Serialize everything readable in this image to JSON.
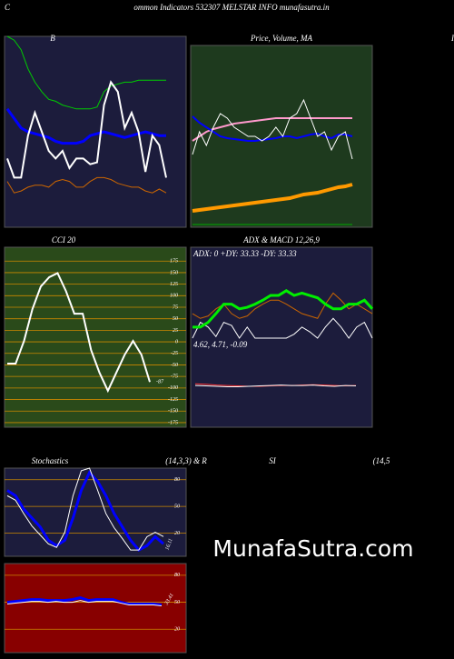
{
  "header": {
    "left": "C",
    "title": "ommon  Indicators 532307 MELSTAR INFO munafasutra.in",
    "right": "I"
  },
  "watermark": "MunafaSutra.com",
  "chart_data": [
    {
      "type": "line",
      "title": "B",
      "ylim": [
        0,
        100
      ],
      "series": [
        {
          "color": "#00cc00",
          "values": [
            100,
            98,
            93,
            83,
            76,
            71,
            67,
            66,
            64,
            63,
            62,
            62,
            62,
            63,
            71,
            74,
            75,
            76,
            76,
            77,
            77,
            77,
            77,
            77
          ]
        },
        {
          "color": "#0000ff",
          "values": [
            62,
            57,
            52,
            50,
            49,
            48,
            47,
            45,
            44,
            44,
            44,
            45,
            48,
            49,
            50,
            49,
            48,
            47,
            48,
            49,
            50,
            49,
            48,
            48
          ]
        },
        {
          "color": "#ffffff",
          "values": [
            36,
            26,
            26,
            48,
            60,
            50,
            40,
            36,
            40,
            31,
            36,
            36,
            33,
            34,
            64,
            76,
            71,
            52,
            60,
            50,
            29,
            48,
            43,
            26
          ]
        },
        {
          "color": "#cc6600",
          "values": [
            24,
            18,
            19,
            21,
            22,
            22,
            21,
            24,
            25,
            24,
            21,
            21,
            24,
            26,
            26,
            25,
            23,
            22,
            21,
            21,
            19,
            18,
            20,
            18
          ]
        }
      ]
    },
    {
      "type": "line",
      "title": "Price, Volume, MA",
      "ylim": [
        0,
        100
      ],
      "series": [
        {
          "color": "#ff99cc",
          "values": [
            47.5,
            50,
            52.5,
            54,
            55,
            56,
            57,
            57.5,
            58,
            58.5,
            59,
            59.5,
            60,
            60,
            60,
            60,
            60,
            60,
            60,
            60,
            60,
            60,
            60,
            60
          ]
        },
        {
          "color": "#0000ff",
          "values": [
            61,
            57.5,
            55,
            52.5,
            50,
            49,
            48.5,
            48,
            47.5,
            47.5,
            48,
            48.5,
            49,
            50,
            50,
            49,
            50,
            51,
            51.5,
            50,
            49,
            51,
            51,
            50
          ]
        },
        {
          "color": "#ffffff",
          "values": [
            40,
            52.5,
            45,
            55,
            62.5,
            60,
            55,
            52.5,
            50,
            50,
            47.5,
            50,
            55,
            50,
            60,
            62.5,
            70,
            60,
            50,
            52.5,
            42.5,
            50,
            52.5,
            37.5
          ]
        },
        {
          "color": "#ff9900",
          "values": [
            9,
            9.5,
            10,
            10.5,
            11,
            11.5,
            12,
            12.5,
            13,
            13.5,
            14,
            14.5,
            15,
            15.5,
            16,
            17,
            18,
            18.5,
            19,
            20,
            21,
            22,
            22.5,
            23.5
          ]
        },
        {
          "color": "#00aa00",
          "values": [
            1.5,
            1.5,
            1.5,
            1.5,
            1.5,
            1.5,
            1.5,
            1.5,
            1.5,
            1.5,
            1.5,
            1.5,
            1.5,
            1.5,
            1.5,
            1.5,
            1.5,
            1.5,
            1.5,
            1.5,
            1.5,
            1.5,
            1.5,
            1.5
          ]
        }
      ]
    },
    {
      "type": "line",
      "title": "CCI 20",
      "ylim": [
        -185,
        205
      ],
      "yticks": [
        175,
        150,
        125,
        100,
        75,
        50,
        25,
        0,
        -25,
        -50,
        -75,
        -100,
        -125,
        -150,
        -175
      ],
      "series": [
        {
          "color": "#ffffff",
          "values": [
            -47,
            -47,
            2,
            71,
            120,
            140,
            149,
            110,
            61,
            61,
            -18,
            -67,
            -106,
            -67,
            -28,
            2,
            -28,
            -87
          ]
        }
      ]
    },
    {
      "type": "line",
      "title": "ADX  & MACD 12,26,9",
      "annotation": "ADX: 0  +DY: 33.33 -DY: 33.33",
      "ylim": [
        0,
        100
      ],
      "series": [
        {
          "color": "#ffffff",
          "values": [
            0,
            20,
            14,
            2,
            20,
            16,
            0,
            14,
            0,
            0,
            0,
            0,
            0,
            5,
            14,
            8,
            0,
            14,
            25,
            14,
            0,
            14,
            20,
            0
          ]
        },
        {
          "color": "#cc6600",
          "values": [
            31,
            25,
            28,
            37,
            43,
            31,
            25,
            28,
            37,
            43,
            48,
            48,
            43,
            37,
            31,
            28,
            25,
            43,
            57,
            48,
            37,
            43,
            37,
            31
          ]
        },
        {
          "color": "#00ee00",
          "values": [
            14,
            14,
            20,
            31,
            43,
            43,
            37,
            39,
            43,
            48,
            54,
            54,
            60,
            54,
            57,
            54,
            51,
            43,
            37,
            37,
            43,
            43,
            48,
            37
          ]
        }
      ]
    },
    {
      "type": "line",
      "annotation": "4.62, 4.71, -0.09",
      "ylim": [
        -10,
        10
      ],
      "series": [
        {
          "color": "#ff3333",
          "values": [
            0.6,
            0.5,
            0.3,
            0.2,
            0.1,
            0,
            0,
            0.1,
            0.2,
            0.2,
            0.3,
            0.4,
            0.3,
            0.2,
            0.1,
            0.2
          ]
        },
        {
          "color": "#ffffff",
          "values": [
            0.2,
            0.1,
            0,
            -0.1,
            -0.1,
            0,
            0.1,
            0.2,
            0.3,
            0.2,
            0.2,
            0.3,
            0.1,
            0,
            0.2,
            0.1
          ]
        }
      ]
    },
    {
      "type": "line",
      "title": "Stochastics",
      "subtitle": "(14,3,3) & R",
      "ylim": [
        -6,
        93
      ],
      "yticks": [
        80,
        50,
        20
      ],
      "series": [
        {
          "color": "#0000ff",
          "values": [
            68,
            62,
            47,
            37,
            27,
            12,
            6,
            12,
            37,
            68,
            88,
            78,
            62,
            42,
            27,
            12,
            1,
            6,
            16,
            8
          ]
        },
        {
          "color": "#ffffff",
          "values": [
            62,
            57,
            42,
            28,
            18,
            8,
            4,
            21,
            62,
            90,
            93,
            68,
            42,
            26,
            14,
            1,
            1,
            16,
            21,
            16.11
          ]
        }
      ]
    },
    {
      "type": "line",
      "title": "SI",
      "subtitle": "(14,5",
      "annotation": "33.41",
      "ylim": [
        -6,
        93
      ],
      "yticks": [
        80,
        50,
        20
      ],
      "series": [
        {
          "color": "#0000ff",
          "values": [
            50,
            51,
            52,
            53,
            53,
            52,
            52,
            52,
            53,
            55,
            52,
            53,
            53,
            53,
            50,
            48,
            48,
            48,
            48,
            47
          ]
        },
        {
          "color": "#ffffff",
          "values": [
            48,
            49,
            50,
            51,
            51,
            50,
            51,
            50,
            50,
            52,
            50,
            51,
            51,
            51,
            49,
            47,
            47,
            47,
            47,
            46
          ]
        }
      ]
    }
  ]
}
